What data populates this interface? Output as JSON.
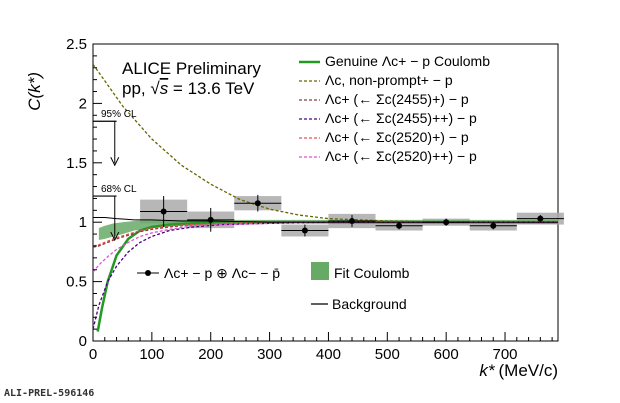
{
  "header": {
    "line1": "ALICE Preliminary",
    "line2_prefix": "pp, ",
    "line2_sqrt": "√",
    "line2_s": "s",
    "line2_suffix": " = 13.6 TeV"
  },
  "footer_id": "ALI-PREL-596146",
  "cl_labels": {
    "cl95": "95% CL",
    "cl68": "68% CL"
  },
  "colors": {
    "genuine": "#229922",
    "fit_band": "#66aa66",
    "nonprompt": "#666600",
    "sigma2455p": "#8b3a3a",
    "sigma2455pp": "#4b0082",
    "sigma2520p": "#e05555",
    "sigma2520pp": "#dd55cc",
    "syst_box": "#aaaaaa",
    "data": "#000000"
  },
  "legend_top": [
    {
      "key": "genuine",
      "label": "Genuine Λc+ − p Coulomb",
      "style": "solid"
    },
    {
      "key": "nonprompt",
      "label": "Λc, non-prompt+ − p",
      "style": "dashed"
    },
    {
      "key": "sigma2455p",
      "label": "Λc+ (← Σc(2455)+) − p",
      "style": "dashed"
    },
    {
      "key": "sigma2455pp",
      "label": "Λc+ (← Σc(2455)++) − p",
      "style": "dashed"
    },
    {
      "key": "sigma2520p",
      "label": "Λc+ (← Σc(2520)+) − p",
      "style": "dashed"
    },
    {
      "key": "sigma2520pp",
      "label": "Λc+ (← Σc(2520)++) − p",
      "style": "dashed"
    }
  ],
  "legend_bottom": [
    {
      "key": "data",
      "label": "Λc+ − p ⊕ Λc− − p̄",
      "style": "marker"
    },
    {
      "key": "fit_band",
      "label": "Fit Coulomb",
      "style": "box"
    },
    {
      "key": "background",
      "label": "Background",
      "style": "line"
    }
  ],
  "chart_data": {
    "type": "scatter",
    "xlabel_main": "k*",
    "xlabel_unit": "(MeV/c)",
    "ylabel": "C(k*)",
    "xlim": [
      0,
      790
    ],
    "ylim": [
      0,
      2.5
    ],
    "xticks": [
      0,
      100,
      200,
      300,
      400,
      500,
      600,
      700
    ],
    "yticks": [
      0,
      0.5,
      1,
      1.5,
      2,
      2.5
    ],
    "data_points": [
      {
        "x": 120,
        "y": 1.09,
        "xerr": 40,
        "yerr": 0.13,
        "syst": 0.1
      },
      {
        "x": 200,
        "y": 1.02,
        "xerr": 40,
        "yerr": 0.1,
        "syst": 0.07
      },
      {
        "x": 280,
        "y": 1.16,
        "xerr": 40,
        "yerr": 0.07,
        "syst": 0.06
      },
      {
        "x": 360,
        "y": 0.93,
        "xerr": 40,
        "yerr": 0.05,
        "syst": 0.05
      },
      {
        "x": 440,
        "y": 1.01,
        "xerr": 40,
        "yerr": 0.05,
        "syst": 0.06
      },
      {
        "x": 520,
        "y": 0.97,
        "xerr": 40,
        "yerr": 0.03,
        "syst": 0.04
      },
      {
        "x": 600,
        "y": 1.0,
        "xerr": 40,
        "yerr": 0.03,
        "syst": 0.03
      },
      {
        "x": 680,
        "y": 0.97,
        "xerr": 40,
        "yerr": 0.03,
        "syst": 0.04
      },
      {
        "x": 760,
        "y": 1.03,
        "xerr": 40,
        "yerr": 0.03,
        "syst": 0.05
      }
    ],
    "cl_limits": [
      {
        "label": "95% CL",
        "y": 1.85,
        "x": [
          0,
          40
        ]
      },
      {
        "label": "68% CL",
        "y": 1.22,
        "x": [
          0,
          40
        ]
      }
    ],
    "curves": [
      {
        "name": "Genuine Λc+ − p Coulomb",
        "key": "genuine",
        "x": [
          8,
          15,
          25,
          40,
          60,
          80,
          100,
          130,
          170,
          220,
          300,
          400,
          500,
          600,
          700,
          790
        ],
        "y": [
          0.08,
          0.27,
          0.5,
          0.72,
          0.86,
          0.93,
          0.96,
          0.98,
          0.99,
          1.0,
          1.0,
          1.0,
          1.0,
          1.0,
          1.0,
          1.0
        ]
      },
      {
        "name": "Λc, non-prompt+ − p",
        "key": "nonprompt",
        "x": [
          0,
          50,
          100,
          150,
          200,
          250,
          300,
          350,
          400,
          500,
          600,
          700,
          790
        ],
        "y": [
          2.33,
          1.98,
          1.7,
          1.48,
          1.32,
          1.19,
          1.11,
          1.06,
          1.03,
          1.01,
          1.0,
          1.0,
          1.0
        ]
      },
      {
        "name": "Λc+ (← Σc(2455)+) − p",
        "key": "sigma2455p",
        "x": [
          0,
          10,
          20,
          40,
          60,
          80,
          100,
          130,
          170,
          220,
          300,
          400,
          600,
          790
        ],
        "y": [
          0.79,
          0.8,
          0.82,
          0.86,
          0.89,
          0.92,
          0.94,
          0.96,
          0.98,
          0.99,
          1.0,
          1.0,
          1.0,
          1.0
        ]
      },
      {
        "name": "Λc+ (← Σc(2455)++) − p",
        "key": "sigma2455pp",
        "x": [
          0,
          10,
          25,
          40,
          60,
          80,
          100,
          130,
          170,
          220,
          300,
          400,
          600,
          790
        ],
        "y": [
          0.1,
          0.3,
          0.5,
          0.63,
          0.75,
          0.83,
          0.88,
          0.93,
          0.96,
          0.98,
          0.99,
          1.0,
          1.0,
          1.0
        ]
      },
      {
        "name": "Λc+ (← Σc(2520)+) − p",
        "key": "sigma2520p",
        "x": [
          0,
          10,
          20,
          40,
          60,
          80,
          100,
          130,
          170,
          220,
          300,
          400,
          600,
          790
        ],
        "y": [
          0.8,
          0.81,
          0.83,
          0.87,
          0.9,
          0.93,
          0.95,
          0.97,
          0.98,
          0.99,
          1.0,
          1.0,
          1.0,
          1.0
        ]
      },
      {
        "name": "Λc+ (← Σc(2520)++) − p",
        "key": "sigma2520pp",
        "x": [
          0,
          10,
          25,
          40,
          60,
          80,
          100,
          130,
          170,
          220,
          300,
          400,
          600,
          790
        ],
        "y": [
          0.58,
          0.64,
          0.71,
          0.77,
          0.83,
          0.88,
          0.91,
          0.94,
          0.97,
          0.98,
          0.99,
          1.0,
          1.0,
          1.0
        ]
      }
    ],
    "fit_band": {
      "x": [
        10,
        20,
        35,
        50,
        70,
        100,
        150,
        200,
        300,
        400,
        500,
        600,
        700,
        790
      ],
      "lo": [
        0.85,
        0.86,
        0.88,
        0.9,
        0.93,
        0.95,
        0.97,
        0.98,
        0.99,
        0.99,
        0.99,
        0.99,
        0.99,
        0.99
      ],
      "hi": [
        0.95,
        0.97,
        0.99,
        1.0,
        1.01,
        1.02,
        1.02,
        1.02,
        1.02,
        1.02,
        1.02,
        1.02,
        1.02,
        1.02
      ]
    },
    "background": {
      "x": [
        0,
        20,
        40,
        70,
        100,
        150,
        200,
        300,
        400,
        500,
        600,
        700,
        790
      ],
      "y": [
        1.04,
        1.04,
        1.03,
        1.02,
        1.02,
        1.01,
        1.01,
        1.0,
        1.0,
        1.0,
        1.0,
        1.0,
        1.0
      ]
    },
    "grid": false,
    "legend_placement": "top-right"
  }
}
